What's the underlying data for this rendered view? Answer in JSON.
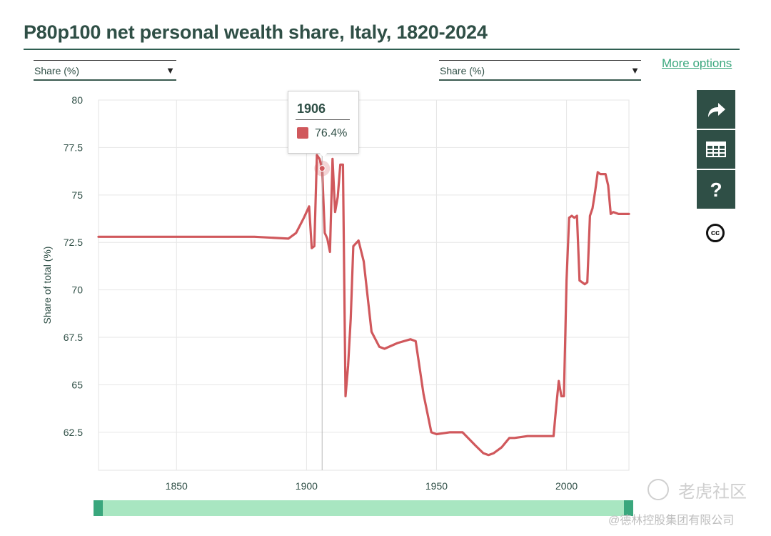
{
  "page": {
    "title": "P80p100 net personal wealth share, Italy, 1820-2024",
    "left_select": "Share (%)",
    "right_select": "Share (%)",
    "more_options": "More options",
    "buttons": [
      "share-icon",
      "table-icon",
      "help-icon"
    ],
    "cc_label": "cc",
    "watermark": "老虎社区",
    "watermark_sub": "@德林控股集团有限公司"
  },
  "tooltip": {
    "year": "1906",
    "value": "76.4%"
  },
  "colors": {
    "series": "#d0585c",
    "accent": "#2f4f46",
    "link": "#3aa77d",
    "scroll": "#a8e6c1"
  },
  "chart_data": {
    "type": "line",
    "title": "P80p100 net personal wealth share, Italy, 1820-2024",
    "ylabel": "Share of total (%)",
    "xlabel": "",
    "xlim": [
      1820,
      2024
    ],
    "ylim": [
      60.5,
      80
    ],
    "yticks": [
      62.5,
      65,
      67.5,
      70,
      72.5,
      75,
      77.5,
      80
    ],
    "xticks": [
      1850,
      1900,
      1950,
      2000
    ],
    "grid": true,
    "series": [
      {
        "x": [
          1820,
          1880,
          1893,
          1896,
          1899,
          1901,
          1902,
          1903,
          1904,
          1905,
          1906,
          1907,
          1908,
          1909,
          1910,
          1911,
          1912,
          1913,
          1914,
          1915,
          1916,
          1917,
          1918,
          1920,
          1922,
          1925,
          1928,
          1930,
          1935,
          1940,
          1942,
          1945,
          1948,
          1950,
          1955,
          1960,
          1965,
          1968,
          1970,
          1972,
          1975,
          1978,
          1980,
          1985,
          1990,
          1995,
          1996,
          1997,
          1998,
          1999,
          2000,
          2001,
          2002,
          2003,
          2004,
          2005,
          2007,
          2008,
          2009,
          2010,
          2011,
          2012,
          2013,
          2014,
          2015,
          2016,
          2017,
          2018,
          2020,
          2024
        ],
        "y": [
          72.8,
          72.8,
          72.7,
          73.0,
          73.8,
          74.4,
          72.2,
          72.3,
          77.1,
          76.9,
          76.4,
          73.0,
          72.7,
          72.0,
          76.9,
          74.1,
          74.9,
          76.6,
          76.6,
          64.4,
          66.0,
          68.5,
          72.3,
          72.6,
          71.5,
          67.8,
          67.0,
          66.9,
          67.2,
          67.4,
          67.3,
          64.5,
          62.5,
          62.4,
          62.5,
          62.5,
          61.8,
          61.4,
          61.3,
          61.4,
          61.7,
          62.2,
          62.2,
          62.3,
          62.3,
          62.3,
          63.8,
          65.2,
          64.4,
          64.4,
          70.5,
          73.8,
          73.9,
          73.8,
          73.9,
          70.5,
          70.3,
          70.4,
          73.9,
          74.3,
          75.2,
          76.2,
          76.1,
          76.1,
          76.1,
          75.5,
          74.0,
          74.1,
          74.0,
          74.0
        ]
      }
    ],
    "highlight": {
      "x": 1906,
      "y": 76.4
    }
  }
}
